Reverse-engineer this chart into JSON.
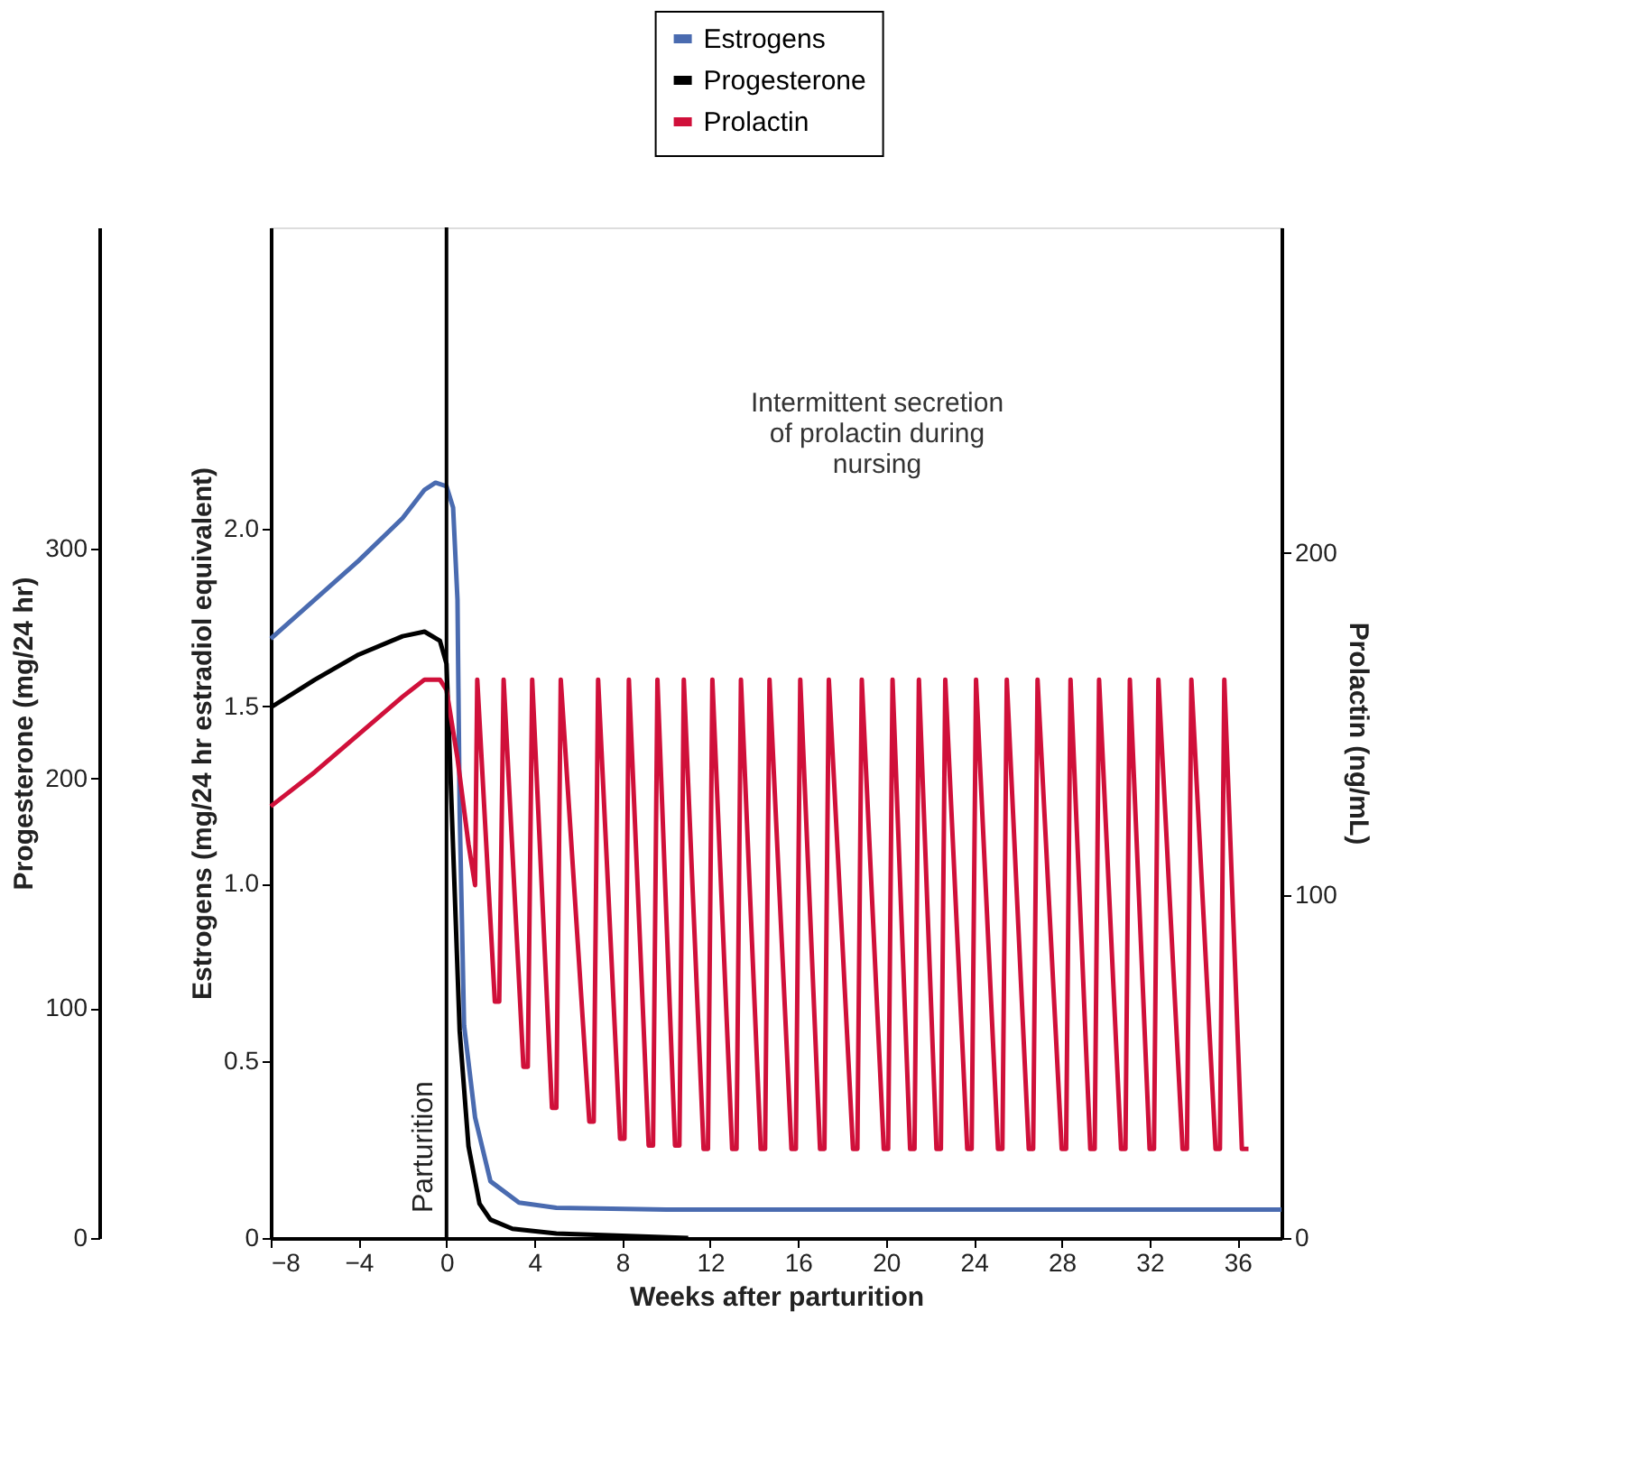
{
  "chart_data": {
    "type": "line",
    "xlabel": "Weeks after parturition",
    "ylabel": "Estrogens (mg/24 hr estradiol equivalent)",
    "y2label": "Prolactin (ng/mL)",
    "y3label": "Progesterone (mg/24 hr)",
    "xlim": [
      -8,
      38
    ],
    "xticks": [
      -8,
      -4,
      0,
      4,
      8,
      12,
      16,
      20,
      24,
      28,
      32,
      36
    ],
    "ylim": [
      0,
      2.85
    ],
    "yticks": [
      {
        "value": 0,
        "label": "0"
      },
      0.5,
      {
        "value": 1,
        "label": "1.0"
      },
      1.5,
      {
        "value": 2,
        "label": "2.0"
      }
    ],
    "y2lim": [
      0,
      295
    ],
    "y2ticks": [
      0,
      100,
      200
    ],
    "y3lim": [
      0,
      440
    ],
    "y3ticks": [
      0,
      100,
      200,
      300
    ],
    "legend": "top",
    "grid": false,
    "marker": "none",
    "line_style": "solid",
    "ref_lines": [
      {
        "axis": "x",
        "value": 0,
        "label": "Parturition",
        "color": "#000000"
      }
    ],
    "annotations": [
      "Intermittent secretion of prolactin during nursing"
    ],
    "series": [
      {
        "name": "Estrogens",
        "color": "#4a6bb0",
        "axis": "y",
        "x": [
          -8,
          -6,
          -4,
          -2,
          -1,
          -0.5,
          0,
          0.3,
          0.5,
          0.6,
          0.8,
          1.3,
          2,
          3.3,
          5,
          10,
          20,
          30,
          38
        ],
        "values": [
          1.69,
          1.8,
          1.91,
          2.03,
          2.11,
          2.13,
          2.12,
          2.06,
          1.8,
          1.2,
          0.6,
          0.34,
          0.16,
          0.1,
          0.085,
          0.08,
          0.08,
          0.08,
          0.08
        ]
      },
      {
        "name": "Progesterone",
        "color": "#000000",
        "axis": "y3",
        "x": [
          -8,
          -6,
          -4,
          -2,
          -1,
          -0.3,
          0,
          0.3,
          0.6,
          1,
          1.5,
          2,
          3,
          5,
          8,
          11
        ],
        "values": [
          231,
          243,
          254,
          262,
          264,
          260,
          250,
          170,
          90,
          40,
          15,
          8,
          4,
          2,
          1,
          0
        ]
      },
      {
        "name": "Prolactin",
        "color": "#d0103a",
        "axis": "y2",
        "x": [
          -8,
          -6,
          -4,
          -2,
          -1,
          -0.3,
          0,
          0.5,
          1.0,
          1.3,
          1.4,
          2.2,
          2.4,
          2.6,
          3.5,
          3.7,
          3.9,
          4.8,
          5.0,
          5.2,
          6.5,
          6.7,
          6.9,
          7.9,
          8.1,
          8.3,
          9.2,
          9.4,
          9.6,
          10.4,
          10.6,
          10.8,
          11.7,
          11.9,
          12.1,
          13.0,
          13.2,
          13.4,
          14.3,
          14.5,
          14.7,
          15.7,
          15.9,
          16.1,
          17.0,
          17.2,
          17.4,
          18.5,
          18.7,
          18.9,
          19.9,
          20.1,
          20.3,
          21.1,
          21.3,
          21.5,
          22.3,
          22.5,
          22.7,
          23.7,
          23.9,
          24.1,
          25.1,
          25.3,
          25.5,
          26.5,
          26.7,
          26.9,
          28.0,
          28.2,
          28.4,
          29.3,
          29.5,
          29.7,
          30.7,
          30.9,
          31.1,
          32.0,
          32.2,
          32.4,
          33.5,
          33.7,
          33.9,
          35.0,
          35.2,
          35.4,
          36.2,
          36.5
        ],
        "values": [
          126,
          136,
          147,
          158,
          163,
          163,
          160,
          140,
          115,
          103,
          163,
          69,
          69,
          163,
          50,
          50,
          163,
          38,
          38,
          163,
          34,
          34,
          163,
          29,
          29,
          163,
          27,
          27,
          163,
          27,
          27,
          163,
          26,
          26,
          163,
          26,
          26,
          163,
          26,
          26,
          163,
          26,
          26,
          163,
          26,
          26,
          163,
          26,
          26,
          163,
          26,
          26,
          163,
          26,
          26,
          163,
          26,
          26,
          163,
          26,
          26,
          163,
          26,
          26,
          163,
          26,
          26,
          163,
          26,
          26,
          163,
          26,
          26,
          163,
          26,
          26,
          163,
          26,
          26,
          163,
          26,
          26,
          163,
          26,
          26,
          163,
          26,
          26
        ]
      }
    ]
  }
}
